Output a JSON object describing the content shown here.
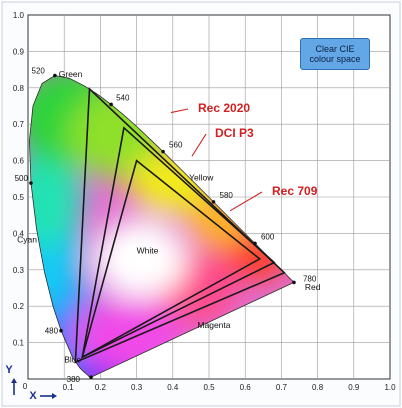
{
  "badge": {
    "line1": "Clear CIE",
    "line2": "colour space"
  },
  "colors": {
    "gamut_label": "#d22020",
    "axis_letter": "#1a2f8c",
    "badge_bg": "#63a7e6",
    "frame": "#cfd6e3"
  },
  "chart_data": {
    "type": "scatter",
    "title": "",
    "xlabel": "X",
    "ylabel": "Y",
    "xlim": [
      0,
      1.0
    ],
    "ylim": [
      0,
      1.0
    ],
    "grid": true,
    "x_ticks": [
      "0",
      "0.1",
      "0.2",
      "0.3",
      "0.4",
      "0.5",
      "0.6",
      "0.7",
      "0.8",
      "0.9",
      "1.0"
    ],
    "y_ticks": [
      "0.1",
      "0.2",
      "0.3",
      "0.4",
      "0.5",
      "0.6",
      "0.7",
      "0.8",
      "0.9",
      "1.0"
    ],
    "spectral_locus": [
      [
        0.1741,
        0.005
      ],
      [
        0.1738,
        0.0049
      ],
      [
        0.1733,
        0.0048
      ],
      [
        0.1726,
        0.0048
      ],
      [
        0.1714,
        0.0051
      ],
      [
        0.1689,
        0.0069
      ],
      [
        0.1644,
        0.0109
      ],
      [
        0.1566,
        0.0177
      ],
      [
        0.144,
        0.0297
      ],
      [
        0.1241,
        0.0578
      ],
      [
        0.0913,
        0.1327
      ],
      [
        0.0687,
        0.2007
      ],
      [
        0.0454,
        0.295
      ],
      [
        0.0235,
        0.4127
      ],
      [
        0.0082,
        0.5384
      ],
      [
        0.0039,
        0.6548
      ],
      [
        0.0139,
        0.7502
      ],
      [
        0.0389,
        0.812
      ],
      [
        0.0743,
        0.8338
      ],
      [
        0.1142,
        0.8262
      ],
      [
        0.1547,
        0.8059
      ],
      [
        0.1929,
        0.7816
      ],
      [
        0.2296,
        0.7543
      ],
      [
        0.2658,
        0.7243
      ],
      [
        0.3016,
        0.6923
      ],
      [
        0.3373,
        0.6589
      ],
      [
        0.3731,
        0.6245
      ],
      [
        0.4087,
        0.5896
      ],
      [
        0.4441,
        0.5547
      ],
      [
        0.4788,
        0.5202
      ],
      [
        0.5125,
        0.4866
      ],
      [
        0.5448,
        0.4544
      ],
      [
        0.5752,
        0.4242
      ],
      [
        0.6029,
        0.3965
      ],
      [
        0.627,
        0.3725
      ],
      [
        0.6482,
        0.3514
      ],
      [
        0.6658,
        0.334
      ],
      [
        0.6801,
        0.3197
      ],
      [
        0.6915,
        0.3083
      ],
      [
        0.7006,
        0.2993
      ],
      [
        0.7079,
        0.292
      ],
      [
        0.714,
        0.2859
      ],
      [
        0.719,
        0.2809
      ],
      [
        0.723,
        0.277
      ],
      [
        0.726,
        0.274
      ],
      [
        0.7283,
        0.2717
      ],
      [
        0.73,
        0.27
      ],
      [
        0.7347,
        0.2653
      ]
    ],
    "wavelength_marks": [
      {
        "label": "380",
        "nm": 380,
        "x": 0.1741,
        "y": 0.005
      },
      {
        "label": "480",
        "nm": 480,
        "x": 0.0913,
        "y": 0.1327
      },
      {
        "label": "500",
        "nm": 500,
        "x": 0.0082,
        "y": 0.5384
      },
      {
        "label": "520",
        "nm": 520,
        "x": 0.0743,
        "y": 0.8338
      },
      {
        "label": "540",
        "nm": 540,
        "x": 0.2296,
        "y": 0.7543
      },
      {
        "label": "560",
        "nm": 560,
        "x": 0.3731,
        "y": 0.6245
      },
      {
        "label": "580",
        "nm": 580,
        "x": 0.5125,
        "y": 0.4866
      },
      {
        "label": "600",
        "nm": 600,
        "x": 0.627,
        "y": 0.3725
      },
      {
        "label": "780",
        "nm": 780,
        "x": 0.7347,
        "y": 0.2653
      }
    ],
    "series": [
      {
        "name": "Rec 2020",
        "points": [
          [
            0.708,
            0.292
          ],
          [
            0.17,
            0.797
          ],
          [
            0.131,
            0.046
          ]
        ]
      },
      {
        "name": "DCI P3",
        "points": [
          [
            0.68,
            0.32
          ],
          [
            0.265,
            0.69
          ],
          [
            0.15,
            0.06
          ]
        ]
      },
      {
        "name": "Rec 709",
        "points": [
          [
            0.64,
            0.33
          ],
          [
            0.3,
            0.6
          ],
          [
            0.15,
            0.06
          ]
        ]
      }
    ],
    "regions": [
      {
        "label": "Green",
        "x": 0.085,
        "y": 0.83
      },
      {
        "label": "Yellow",
        "x": 0.445,
        "y": 0.545
      },
      {
        "label": "Cyan",
        "x": -0.03,
        "y": 0.375
      },
      {
        "label": "White",
        "x": 0.3,
        "y": 0.345
      },
      {
        "label": "Red",
        "x": 0.765,
        "y": 0.245
      },
      {
        "label": "Magenta",
        "x": 0.468,
        "y": 0.14
      },
      {
        "label": "Blue",
        "x": 0.1,
        "y": 0.045
      }
    ]
  }
}
